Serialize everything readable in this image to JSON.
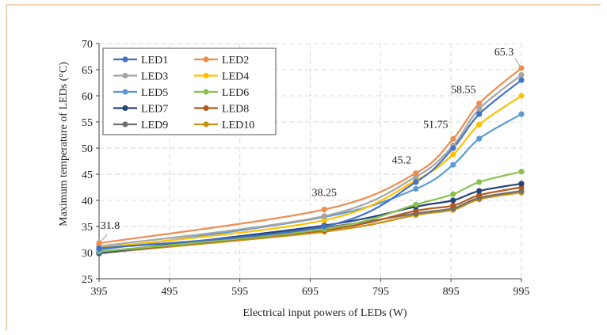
{
  "chart_data": {
    "type": "line",
    "xlabel": "Electrical input powers of LEDs (W)",
    "ylabel": "Maximum temperature of LEDs (°C)",
    "xlim": [
      395,
      995
    ],
    "ylim": [
      25,
      70
    ],
    "x_ticks": [
      395,
      495,
      595,
      695,
      795,
      895,
      995
    ],
    "y_ticks": [
      25,
      30,
      35,
      40,
      45,
      50,
      55,
      60,
      65,
      70
    ],
    "grid": true,
    "legend_position": "top-left",
    "x": [
      395,
      715,
      845,
      898,
      935,
      995
    ],
    "series": [
      {
        "name": "LED1",
        "color": "#4472C4",
        "values": [
          30.8,
          35.0,
          43.5,
          50.0,
          56.5,
          63.0
        ]
      },
      {
        "name": "LED2",
        "color": "#ED8C4F",
        "values": [
          31.8,
          38.25,
          45.2,
          51.75,
          58.55,
          65.3
        ]
      },
      {
        "name": "LED3",
        "color": "#A5A5A5",
        "values": [
          31.2,
          37.0,
          44.5,
          50.5,
          57.5,
          64.0
        ]
      },
      {
        "name": "LED4",
        "color": "#FFC000",
        "values": [
          30.9,
          36.2,
          43.8,
          48.8,
          54.5,
          60.0
        ]
      },
      {
        "name": "LED5",
        "color": "#5B9BD5",
        "values": [
          30.5,
          36.8,
          42.2,
          46.8,
          51.8,
          56.5
        ]
      },
      {
        "name": "LED6",
        "color": "#8CC152",
        "values": [
          30.2,
          34.5,
          39.2,
          41.2,
          43.5,
          45.5
        ]
      },
      {
        "name": "LED7",
        "color": "#264478",
        "values": [
          30.0,
          35.2,
          38.8,
          40.0,
          41.8,
          43.2
        ]
      },
      {
        "name": "LED8",
        "color": "#B35A1E",
        "values": [
          30.1,
          34.3,
          38.0,
          39.0,
          41.0,
          42.5
        ]
      },
      {
        "name": "LED9",
        "color": "#707070",
        "values": [
          29.8,
          34.8,
          37.5,
          38.5,
          40.5,
          41.8
        ]
      },
      {
        "name": "LED10",
        "color": "#C69214",
        "values": [
          29.9,
          34.0,
          37.2,
          38.2,
          40.2,
          41.5
        ]
      }
    ],
    "annotations": [
      {
        "text": "31.8",
        "x": 395,
        "y": 31.8
      },
      {
        "text": "38.25",
        "x": 715,
        "y": 38.25
      },
      {
        "text": "45.2",
        "x": 845,
        "y": 45.2
      },
      {
        "text": "51.75",
        "x": 898,
        "y": 51.75
      },
      {
        "text": "58.55",
        "x": 935,
        "y": 58.55
      },
      {
        "text": "65.3",
        "x": 995,
        "y": 65.3
      }
    ]
  }
}
